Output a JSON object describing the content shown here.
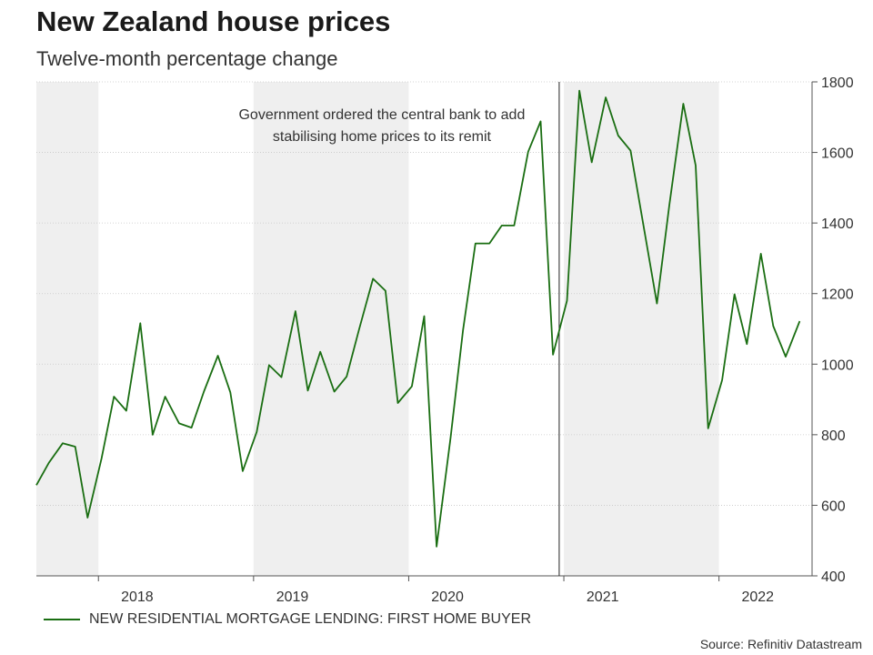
{
  "chart_data": {
    "type": "line",
    "title": "New Zealand house prices",
    "subtitle": "Twelve-month percentage change",
    "ylim": [
      400,
      1800
    ],
    "yticks": [
      400,
      600,
      800,
      1000,
      1200,
      1400,
      1600,
      1800
    ],
    "x_range": [
      2017.35,
      2022.35
    ],
    "x_labels": [
      {
        "label": "2018",
        "x": 2018.0
      },
      {
        "label": "2019",
        "x": 2019.0
      },
      {
        "label": "2020",
        "x": 2020.0
      },
      {
        "label": "2021",
        "x": 2021.0
      },
      {
        "label": "2022",
        "x": 2022.0
      }
    ],
    "year_boundaries": [
      2017.75,
      2018.75,
      2019.75,
      2020.75,
      2021.75
    ],
    "shaded_bands": [
      [
        2017.35,
        2017.75
      ],
      [
        2018.75,
        2019.75
      ],
      [
        2020.75,
        2021.75
      ]
    ],
    "series": [
      {
        "name": "NEW RESIDENTIAL MORTGAGE LENDING: FIRST HOME BUYER",
        "color": "#1a6e12",
        "points": [
          [
            2017.35,
            657
          ],
          [
            2017.43,
            720
          ],
          [
            2017.52,
            776
          ],
          [
            2017.6,
            766
          ],
          [
            2017.68,
            565
          ],
          [
            2017.77,
            733
          ],
          [
            2017.85,
            908
          ],
          [
            2017.93,
            868
          ],
          [
            2018.02,
            1116
          ],
          [
            2018.1,
            800
          ],
          [
            2018.18,
            908
          ],
          [
            2018.27,
            832
          ],
          [
            2018.35,
            820
          ],
          [
            2018.43,
            922
          ],
          [
            2018.52,
            1024
          ],
          [
            2018.6,
            920
          ],
          [
            2018.68,
            697
          ],
          [
            2018.77,
            808
          ],
          [
            2018.85,
            997
          ],
          [
            2018.93,
            963
          ],
          [
            2019.02,
            1150
          ],
          [
            2019.1,
            925
          ],
          [
            2019.18,
            1035
          ],
          [
            2019.27,
            922
          ],
          [
            2019.35,
            965
          ],
          [
            2019.43,
            1098
          ],
          [
            2019.52,
            1242
          ],
          [
            2019.6,
            1208
          ],
          [
            2019.68,
            890
          ],
          [
            2019.77,
            937
          ],
          [
            2019.85,
            1136
          ],
          [
            2019.93,
            483
          ],
          [
            2020.02,
            792
          ],
          [
            2020.1,
            1097
          ],
          [
            2020.18,
            1342
          ],
          [
            2020.27,
            1342
          ],
          [
            2020.35,
            1393
          ],
          [
            2020.43,
            1393
          ],
          [
            2020.52,
            1602
          ],
          [
            2020.6,
            1688
          ],
          [
            2020.68,
            1027
          ],
          [
            2020.77,
            1180
          ],
          [
            2020.85,
            1775
          ],
          [
            2020.93,
            1572
          ],
          [
            2021.02,
            1756
          ],
          [
            2021.1,
            1648
          ],
          [
            2021.18,
            1605
          ],
          [
            2021.27,
            1375
          ],
          [
            2021.35,
            1172
          ],
          [
            2021.43,
            1450
          ],
          [
            2021.52,
            1738
          ],
          [
            2021.6,
            1563
          ],
          [
            2021.68,
            818
          ],
          [
            2021.77,
            955
          ],
          [
            2021.85,
            1198
          ],
          [
            2021.93,
            1057
          ],
          [
            2022.02,
            1313
          ],
          [
            2022.1,
            1108
          ],
          [
            2022.18,
            1021
          ],
          [
            2022.27,
            1122
          ]
        ]
      }
    ],
    "vline": {
      "x": 2020.72,
      "label_lines": [
        "Government ordered the central bank to add",
        "stabilising home prices to its remit"
      ]
    },
    "legend": {
      "label": "NEW RESIDENTIAL MORTGAGE LENDING: FIRST HOME BUYER",
      "color": "#1a6e12"
    },
    "source": "Source: Refinitiv Datastream",
    "y_axis_side": "right",
    "grid": true
  }
}
